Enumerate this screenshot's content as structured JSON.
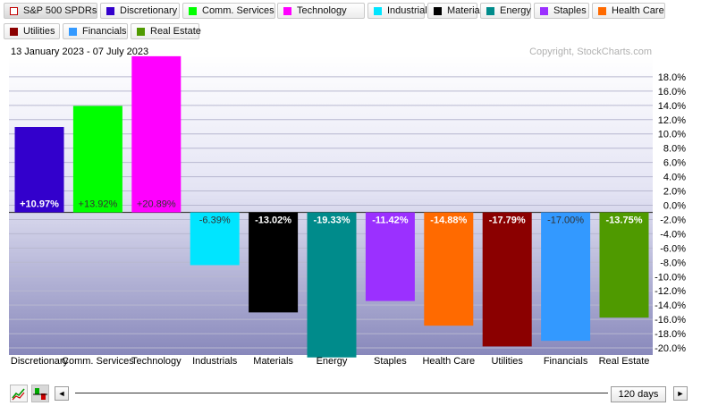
{
  "legend": [
    {
      "label": "S&P 500 SPDRs",
      "color": "#ffffff",
      "border": "#c00000",
      "active": true
    },
    {
      "label": "Discretionary",
      "color": "#3300cc"
    },
    {
      "label": "Comm. Services",
      "color": "#00ff00"
    },
    {
      "label": "Technology",
      "color": "#ff00ff"
    },
    {
      "label": "Industrials",
      "color": "#00e5ff"
    },
    {
      "label": "Materials",
      "color": "#000000"
    },
    {
      "label": "Energy",
      "color": "#008b8b"
    },
    {
      "label": "Staples",
      "color": "#9b30ff"
    },
    {
      "label": "Health Care",
      "color": "#ff6a00"
    },
    {
      "label": "Utilities",
      "color": "#8b0000"
    },
    {
      "label": "Financials",
      "color": "#3399ff"
    },
    {
      "label": "Real Estate",
      "color": "#4f9a00"
    }
  ],
  "chart_data": {
    "type": "bar",
    "subtitle": "13 January 2023 - 07 July 2023",
    "watermark": "Copyright, StockCharts.com",
    "categories": [
      "Discretionary",
      "Comm. Services",
      "Technology",
      "Industrials",
      "Materials",
      "Energy",
      "Staples",
      "Health Care",
      "Utilities",
      "Financials",
      "Real Estate"
    ],
    "values": [
      10.97,
      13.92,
      20.89,
      -6.39,
      -13.02,
      -19.33,
      -11.42,
      -14.88,
      -17.79,
      -17.0,
      -13.75
    ],
    "value_labels": [
      "+10.97%",
      "+13.92%",
      "+20.89%",
      "-6.39%",
      "-13.02%",
      "-19.33%",
      "-11.42%",
      "-14.88%",
      "-17.79%",
      "-17.00%",
      "-13.75%"
    ],
    "colors": [
      "#3300cc",
      "#00ff00",
      "#ff00ff",
      "#00e5ff",
      "#000000",
      "#008b8b",
      "#9b30ff",
      "#ff6a00",
      "#8b0000",
      "#3399ff",
      "#4f9a00"
    ],
    "label_colors": [
      "#ffffff",
      "#333333",
      "#333333",
      "#333333",
      "#ffffff",
      "#ffffff",
      "#ffffff",
      "#ffffff",
      "#ffffff",
      "#333333",
      "#ffffff"
    ],
    "yticks": [
      18,
      16,
      14,
      12,
      10,
      8,
      6,
      4,
      2,
      0,
      -2,
      -4,
      -6,
      -8,
      -10,
      -12,
      -14,
      -16,
      -18,
      -20
    ],
    "ytick_labels": [
      "18.0%",
      "16.0%",
      "14.0%",
      "12.0%",
      "10.0%",
      "8.0%",
      "6.0%",
      "4.0%",
      "2.0%",
      "0.0%",
      "-2.0%",
      "-4.0%",
      "-6.0%",
      "-8.0%",
      "-10.0%",
      "-12.0%",
      "-14.0%",
      "-16.0%",
      "-18.0%",
      "-20.0%"
    ],
    "ylim": [
      -21,
      21
    ],
    "grid": true,
    "yaxis_side": "right"
  },
  "toolbar": {
    "period_label": "120 days",
    "prev_symbol": "◄",
    "next_symbol": "►",
    "line_chart_icon": "line-chart-icon",
    "bar_chart_icon": "bar-chart-icon"
  }
}
